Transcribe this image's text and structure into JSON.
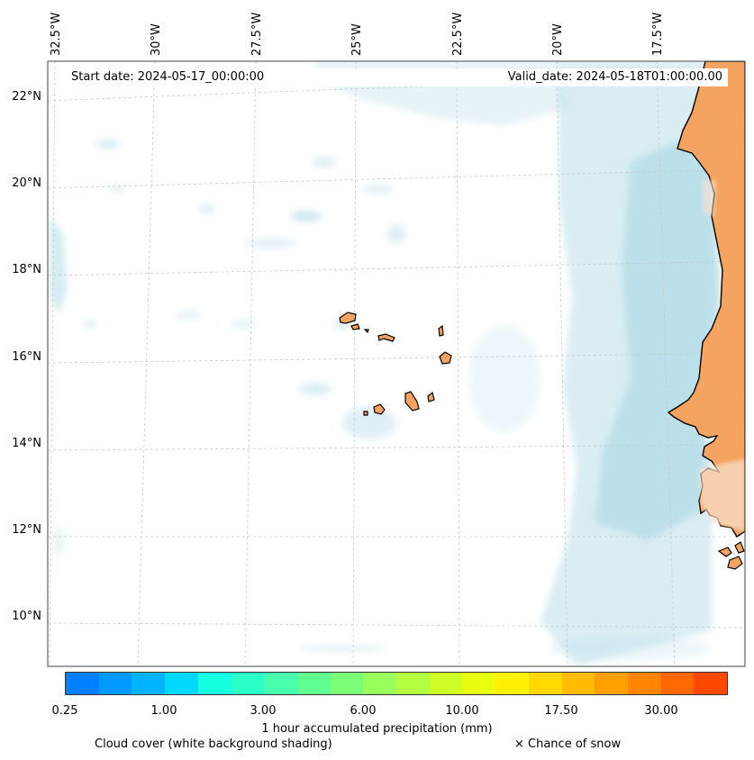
{
  "map": {
    "start_date": "Start date: 2024-05-17_00:00:00",
    "valid_date": "Valid_date: 2024-05-18T01:00:00.00",
    "lon_labels": [
      "32.5°W",
      "30°W",
      "27.5°W",
      "25°W",
      "22.5°W",
      "20°W",
      "17.5°W"
    ],
    "lat_labels": [
      "22°N",
      "20°N",
      "18°N",
      "16°N",
      "14°N",
      "12°N",
      "10°N"
    ],
    "colors": {
      "land": "#f4a460",
      "cloud": "#add8e6",
      "coast": "#000000"
    }
  },
  "colorbar": {
    "colors": [
      "#0080ff",
      "#009aff",
      "#00b4ff",
      "#00d8ff",
      "#16ffe0",
      "#2cffc7",
      "#48ffae",
      "#60ff92",
      "#7cff76",
      "#98ff5c",
      "#b4ff42",
      "#d0ff28",
      "#e8ff0e",
      "#fff200",
      "#ffd800",
      "#ffbc00",
      "#ffa000",
      "#ff8400",
      "#ff6800",
      "#ff4800"
    ],
    "tick_labels": [
      "0.25",
      "1.00",
      "3.00",
      "6.00",
      "10.00",
      "17.50",
      "30.00"
    ],
    "title": "1 hour accumulated precipitation (mm)"
  },
  "legend": {
    "cloud": "Cloud cover (white background shading)",
    "snow": "× Chance of snow"
  }
}
